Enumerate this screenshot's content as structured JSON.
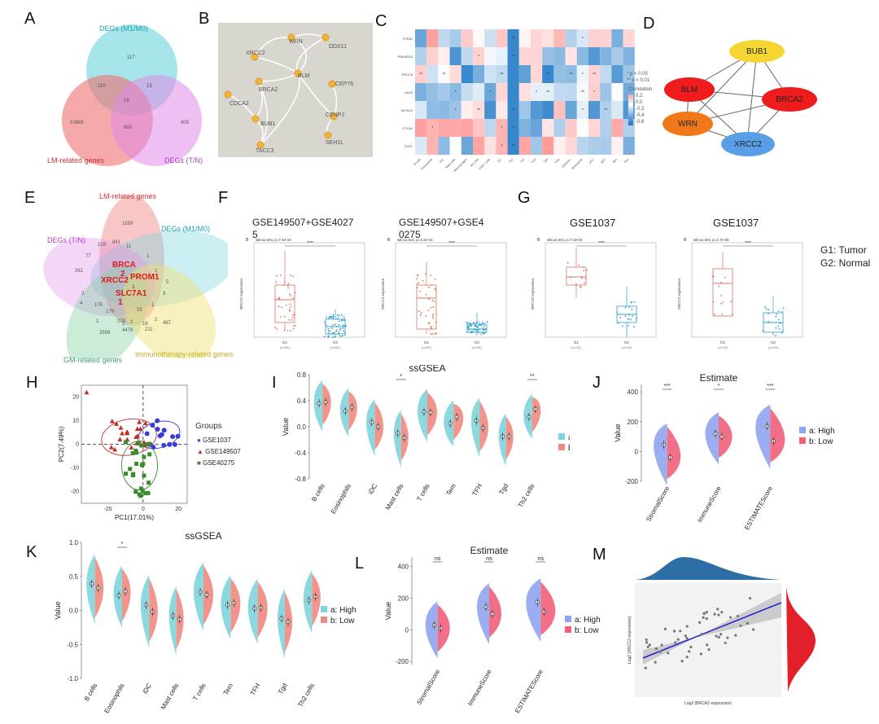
{
  "panels": {
    "A": {
      "letter": "A",
      "sets": {
        "top": "DEGs (M1/M0)",
        "left": "LM-related genes",
        "right": "DEGs (T/N)"
      },
      "counts": {
        "top_only": "117",
        "left_only": "10868",
        "right_only": "405",
        "top_left": "110",
        "top_right": "15",
        "left_right": "680",
        "center": "19"
      }
    },
    "B": {
      "letter": "B",
      "genes": [
        "WRN",
        "DDX11",
        "XRCC2",
        "BLM",
        "CEP76",
        "BRCA2",
        "CDCA2",
        "CENPJ",
        "BUB1",
        "SEH1L",
        "TACC3"
      ]
    },
    "C": {
      "letter": "C",
      "legend": {
        "p1": "* p < 0.05",
        "p2": "** p < 0.01",
        "title": "Correlation",
        "v1": "0.2",
        "v2": "0.0",
        "v3": "-0.2",
        "v4": "-0.4",
        "v5": "-0.6"
      },
      "rows": [
        "TPD52",
        "PRKAR1A",
        "ERCC6",
        "LAG3",
        "SLFN12",
        "CTLA4",
        "TIGIT"
      ],
      "cols": [
        "B cells",
        "Eosinophils",
        "iDC",
        "Mast cells",
        "Macrophages",
        "NK cells",
        "CD8 T cells",
        "DC",
        "Th1",
        "Th2",
        "TFH",
        "Tgd",
        "Treg",
        "Cytotoxic",
        "Neutrophils",
        "pDC",
        "aDC",
        "Tem",
        "Tcm"
      ]
    },
    "D": {
      "letter": "D",
      "nodes": [
        "BUB1",
        "BLM",
        "BRCA2",
        "WRN",
        "XRCC2"
      ]
    },
    "E": {
      "letter": "E",
      "sets": {
        "a": "LM-related genes",
        "b": "DEGs (M1/M0)",
        "c": "DEGs (T/N)",
        "d": "GM-related genes",
        "e": "Immunotherapy-related genes"
      },
      "highlight": [
        "BRCA",
        "2",
        "XRCC2",
        "PROM1",
        "SLC7A1",
        "1"
      ],
      "nums": [
        "1189",
        "11",
        "261",
        "841",
        "77",
        "219",
        "1",
        "1",
        "5",
        "3",
        "2",
        "4",
        "179",
        "23",
        "1",
        "2",
        "16",
        "2",
        "2",
        "270",
        "1",
        "4479",
        "211",
        "487",
        "2599",
        "3",
        "178"
      ]
    },
    "F": {
      "letter": "F",
      "title1": "GSE149507+GSE4027",
      "title1b": "5",
      "title2": "GSE149507+GSE4",
      "title2b": "0275",
      "stat1": "wilcox.test, p=7.4e-16",
      "stat2": "wilcox.test, p=4.2e-16",
      "sig": "****",
      "ylab1": "BRCA2 expression",
      "ylab2": "XRCC2 expression",
      "x1": "G1",
      "x2": "G2",
      "n1": "(n=52)",
      "n2": "(n=61)",
      "n3": "(n=61)",
      "n4": "(n=61)"
    },
    "G": {
      "letter": "G",
      "title1": "GSE1037",
      "title2": "GSE1037",
      "stat1": "wilcox.test, p=7.3e-04",
      "stat2": "wilcox.test, p=2.7e-05",
      "sig": "****",
      "ylab1": "BRCA2 expression",
      "ylab2": "XRCC2 expression",
      "x1": "G1",
      "x2": "G2",
      "n1": "(n=13)",
      "n2": "(n=19)",
      "n3": "(n=13)",
      "n4": "(n=19)",
      "legend1": "G1:  Tumor",
      "legend2": "G2:  Normal"
    },
    "H": {
      "letter": "H",
      "legend_title": "Groups",
      "groups": [
        "GSE1037",
        "GSE149507",
        "GSE40275"
      ],
      "xlabel": "PC1(17.01%)",
      "ylabel": "PC2(7.49%)",
      "xticks": [
        "-20",
        "0",
        "20"
      ],
      "yticks": [
        "20",
        "10",
        "0",
        "-10",
        "-20"
      ],
      "colors": [
        "#3b3bd8",
        "#c42b2b",
        "#3c8a2e"
      ]
    },
    "I": {
      "letter": "I",
      "title": "ssGSEA",
      "ylabel": "Value",
      "yticks": [
        "0.8",
        "0.4",
        "0.0",
        "-0.4",
        "-0.8"
      ],
      "cats": [
        "B cells",
        "Eosinophils",
        "iDC",
        "Mast cells",
        "T cells",
        "Tem",
        "TFH",
        "Tgd",
        "Th2 cells"
      ],
      "sig": [
        "",
        "",
        "",
        "*",
        "",
        "",
        "",
        "",
        "**"
      ],
      "legend_a": "a:  High",
      "legend_b": "b:  Low"
    },
    "J": {
      "letter": "J",
      "title": "Estimate",
      "ylabel": "Value",
      "yticks": [
        "400",
        "200",
        "0",
        "-200"
      ],
      "cats": [
        "StromalScore",
        "ImmuneScore",
        "ESTIMATEScore"
      ],
      "sig": [
        "***",
        "*",
        "***"
      ],
      "legend_a": "a:  High",
      "legend_b": "b:  Low"
    },
    "K": {
      "letter": "K",
      "title": "ssGSEA",
      "ylabel": "Value",
      "yticks": [
        "1.0",
        "0.5",
        "0.0",
        "-0.5",
        "-1.0"
      ],
      "cats": [
        "B cells",
        "Eosinophils",
        "iDC",
        "Mast cells",
        "T cells",
        "Tem",
        "TFH",
        "Tgd",
        "Th2 cells"
      ],
      "sig": [
        "",
        "*",
        "",
        "",
        "",
        "",
        "",
        "",
        ""
      ],
      "legend_a": "a:  High",
      "legend_b": "b:  Low"
    },
    "L": {
      "letter": "L",
      "title": "Estimate",
      "ylabel": "Value",
      "yticks": [
        "400",
        "200",
        "0",
        "-200"
      ],
      "cats": [
        "StromalScore",
        "ImmuneScore",
        "ESTIMATEScore"
      ],
      "sig": [
        "ns",
        "ns",
        "ns"
      ],
      "legend_a": "a:  High",
      "legend_b": "b:  Low"
    },
    "M": {
      "letter": "M",
      "xlabel": "Log2 (BRCA2 expression)",
      "ylabel": "Log2 (XRCC2 expression)"
    }
  },
  "colors": {
    "high": "#7fd4dc",
    "low": "#f08a80",
    "high_est": "#8fa4f0",
    "low_est": "#f0607a",
    "venn_top": "#7fd8e0",
    "venn_left": "#f07070",
    "venn_right": "#e08ae8"
  }
}
